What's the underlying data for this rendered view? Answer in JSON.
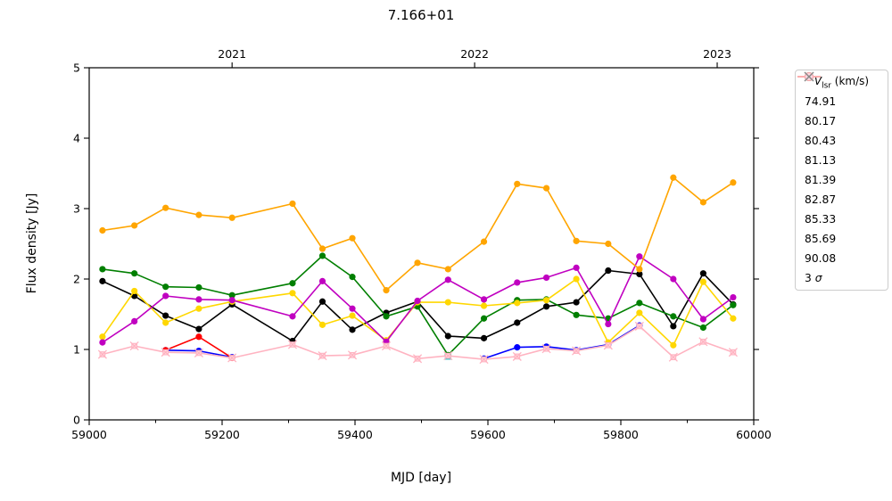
{
  "chart_data": {
    "type": "line",
    "title": "7.166+01",
    "xlabel": "MJD [day]",
    "ylabel": "Flux density [Jy]",
    "xlim": [
      59000,
      60000
    ],
    "ylim": [
      0,
      5
    ],
    "x_ticks": [
      59000,
      59200,
      59400,
      59600,
      59800,
      60000
    ],
    "x_minor_ticks": [
      59100,
      59300,
      59500,
      59700,
      59900
    ],
    "y_ticks": [
      0,
      1,
      2,
      3,
      4,
      5
    ],
    "top_year_ticks": [
      {
        "label": "2021",
        "mjd": 59215
      },
      {
        "label": "2022",
        "mjd": 59580
      },
      {
        "label": "2023",
        "mjd": 59945
      }
    ],
    "legend": {
      "title_v": "V",
      "title_sub": "lsr",
      "title_rest": " (km/s)",
      "sigma_prefix": "3 ",
      "sigma_symbol": "σ",
      "sigma_color": "#888888"
    },
    "grid": false,
    "legend_position": "outside-right",
    "x": [
      59020,
      59068,
      59115,
      59165,
      59215,
      59306,
      59351,
      59396,
      59447,
      59494,
      59540,
      59594,
      59644,
      59688,
      59733,
      59781,
      59828,
      59879,
      59924,
      59969
    ],
    "series": [
      {
        "name": "74.91",
        "color": "#000000",
        "marker": "circle",
        "values": [
          1.97,
          1.76,
          1.48,
          1.29,
          1.64,
          1.12,
          1.68,
          1.28,
          1.52,
          1.68,
          1.19,
          1.16,
          1.38,
          1.61,
          1.67,
          2.12,
          2.07,
          1.33,
          2.08,
          1.64
        ]
      },
      {
        "name": "80.17",
        "color": "#0000ff",
        "marker": "circle",
        "values": [
          null,
          null,
          0.99,
          0.98,
          0.89,
          null,
          null,
          null,
          null,
          null,
          null,
          0.87,
          1.03,
          1.04,
          0.99,
          1.07,
          1.34,
          null,
          null,
          null
        ]
      },
      {
        "name": "80.43",
        "color": "#ff0000",
        "marker": "circle",
        "values": [
          null,
          null,
          0.99,
          1.18,
          0.88,
          null,
          null,
          null,
          null,
          null,
          null,
          null,
          null,
          null,
          null,
          null,
          null,
          null,
          null,
          null
        ]
      },
      {
        "name": "81.13",
        "color": "#007f00",
        "marker": "circle",
        "values": [
          2.14,
          2.08,
          1.89,
          1.88,
          1.77,
          1.94,
          2.33,
          2.03,
          1.47,
          1.61,
          0.92,
          1.44,
          1.7,
          1.71,
          1.49,
          1.44,
          1.66,
          1.47,
          1.31,
          1.63
        ]
      },
      {
        "name": "81.39",
        "color": "#ffd700",
        "marker": "circle",
        "values": [
          1.18,
          1.83,
          1.38,
          1.58,
          1.68,
          1.8,
          1.35,
          1.48,
          1.13,
          1.67,
          1.67,
          1.62,
          1.66,
          1.7,
          2.0,
          1.1,
          1.52,
          1.06,
          1.96,
          1.44
        ]
      },
      {
        "name": "82.87",
        "color": "#00bfbf",
        "marker": "square",
        "values": [
          null,
          null,
          null,
          null,
          null,
          null,
          null,
          null,
          null,
          null,
          0.9,
          null,
          null,
          null,
          null,
          null,
          null,
          null,
          null,
          null
        ]
      },
      {
        "name": "85.33",
        "color": "#c000c0",
        "marker": "circle",
        "values": [
          1.1,
          1.4,
          1.76,
          1.71,
          1.7,
          1.47,
          1.97,
          1.58,
          1.11,
          1.69,
          1.99,
          1.71,
          1.95,
          2.02,
          2.16,
          1.36,
          2.32,
          2.0,
          1.43,
          1.74
        ]
      },
      {
        "name": "85.69",
        "color": "#ffa500",
        "marker": "circle",
        "values": [
          2.69,
          2.76,
          3.01,
          2.91,
          2.87,
          3.07,
          2.43,
          2.58,
          1.84,
          2.23,
          2.14,
          2.53,
          3.35,
          3.29,
          2.54,
          2.5,
          2.14,
          3.44,
          3.09,
          3.37
        ]
      },
      {
        "name": "90.08",
        "color": "#ffb3c1",
        "marker": "square-x",
        "marker_fill": "#ffdde4",
        "values": [
          0.93,
          1.05,
          0.96,
          0.95,
          0.88,
          1.07,
          0.91,
          0.92,
          1.05,
          0.87,
          0.91,
          0.86,
          0.9,
          1.01,
          0.98,
          1.06,
          1.33,
          0.89,
          1.11,
          0.96
        ]
      }
    ]
  }
}
